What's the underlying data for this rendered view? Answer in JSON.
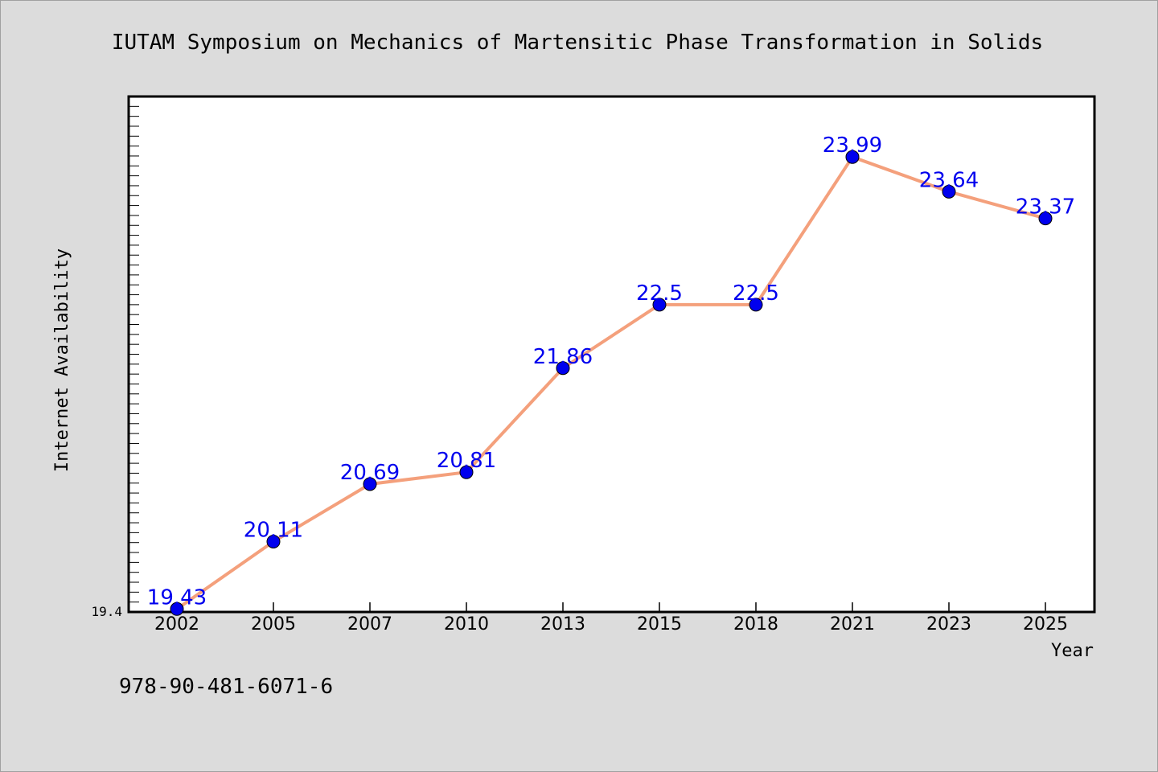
{
  "chart_data": {
    "type": "line",
    "title": "IUTAM Symposium on Mechanics of Martensitic Phase Transformation in Solids",
    "xlabel": "Year",
    "ylabel": "Internet Availability",
    "categories": [
      "2002",
      "2005",
      "2007",
      "2010",
      "2013",
      "2015",
      "2018",
      "2021",
      "2023",
      "2025"
    ],
    "series": [
      {
        "values": [
          19.43,
          20.11,
          20.69,
          20.81,
          21.86,
          22.5,
          22.5,
          23.99,
          23.64,
          23.37
        ],
        "labels": [
          "19.43",
          "20.11",
          "20.69",
          "20.81",
          "21.86",
          "22.5",
          "22.5",
          "23.99",
          "23.64",
          "23.37"
        ]
      }
    ],
    "ylim": [
      19.4,
      24.6
    ],
    "ymin_label": "19.4",
    "grid": false,
    "legend": "none",
    "colors": {
      "line": "#f4a07c",
      "marker": "#0000ee",
      "data_label": "#0000ee",
      "plot_background": "#ffffff",
      "page_background": "#dcdcdc"
    }
  },
  "footer": {
    "isbn": "978-90-481-6071-6"
  }
}
